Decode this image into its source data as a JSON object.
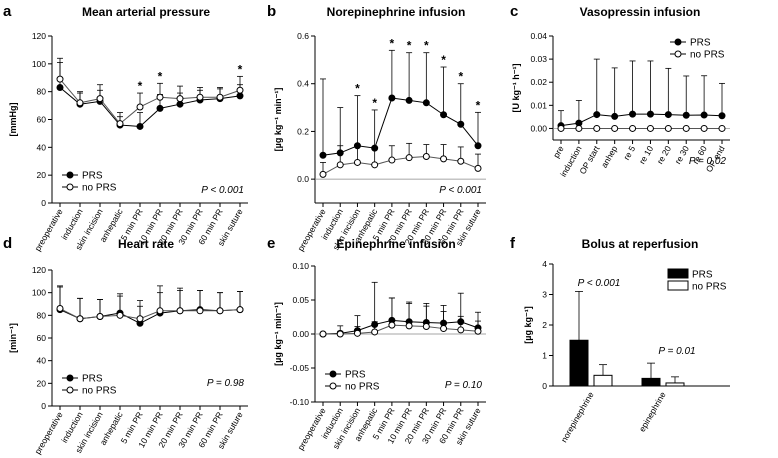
{
  "legend_prs": "PRS",
  "legend_noprs": "no PRS",
  "chart_data": [
    {
      "id": "map",
      "type": "line",
      "panel_label": "a",
      "title": "Mean arterial pressure",
      "ylabel": "[mmHg]",
      "ylim": [
        0,
        120
      ],
      "yticks": [
        "0",
        "20",
        "40",
        "60",
        "80",
        "100",
        "120"
      ],
      "ytick_values": [
        0,
        20,
        40,
        60,
        80,
        100,
        120
      ],
      "categories": [
        "preoperative",
        "induction",
        "skin incision",
        "anhepatic",
        "5 min PR",
        "10 min PR",
        "20 min PR",
        "30 min PR",
        "60 min PR",
        "skin suture"
      ],
      "series": [
        {
          "name": "PRS",
          "values": [
            83,
            71,
            73,
            56,
            55,
            68,
            71,
            74,
            75,
            77
          ],
          "err": [
            18,
            8,
            8,
            9,
            10,
            10,
            8,
            7,
            7,
            8
          ]
        },
        {
          "name": "no PRS",
          "values": [
            89,
            72,
            75,
            57,
            69,
            76,
            75,
            76,
            76,
            81
          ],
          "err": [
            15,
            8,
            10,
            5,
            10,
            10,
            9,
            7,
            7,
            10
          ]
        }
      ],
      "stars": [
        "",
        "",
        "",
        "",
        "*",
        "*",
        "",
        "",
        "",
        "*"
      ],
      "pvalue": "P < 0.001",
      "legend_pos": "bottom-left"
    },
    {
      "id": "norepi",
      "type": "line",
      "panel_label": "b",
      "title": "Norepinephrine infusion",
      "ylabel": "[µg kg⁻¹ min⁻¹]",
      "ylim": [
        -0.1,
        0.6
      ],
      "yticks": [
        "0.0",
        "0.2",
        "0.4",
        "0.6"
      ],
      "ytick_values": [
        0,
        0.2,
        0.4,
        0.6
      ],
      "categories": [
        "preoperative",
        "induction",
        "skin incision",
        "anhepatic",
        "5 min PR",
        "10 min PR",
        "20 min PR",
        "30 min PR",
        "60 min PR",
        "skin suture"
      ],
      "series": [
        {
          "name": "PRS",
          "values": [
            0.1,
            0.11,
            0.14,
            0.13,
            0.34,
            0.33,
            0.32,
            0.27,
            0.23,
            0.14
          ],
          "err": [
            0.32,
            0.19,
            0.21,
            0.16,
            0.2,
            0.2,
            0.21,
            0.2,
            0.17,
            0.14
          ]
        },
        {
          "name": "no PRS",
          "values": [
            0.02,
            0.06,
            0.07,
            0.06,
            0.08,
            0.09,
            0.095,
            0.085,
            0.075,
            0.045
          ],
          "err": [
            0.05,
            0.08,
            0.07,
            0.07,
            0.06,
            0.06,
            0.05,
            0.06,
            0.06,
            0.06
          ]
        }
      ],
      "stars": [
        "",
        "",
        "*",
        "*",
        "*",
        "*",
        "*",
        "*",
        "*",
        "*"
      ],
      "pvalue": "P < 0.001",
      "zero_line": true
    },
    {
      "id": "vaso",
      "type": "line",
      "panel_label": "c",
      "title": "Vasopressin infusion",
      "ylabel": "[U kg⁻¹ h⁻¹]",
      "ylim": [
        -0.005,
        0.04
      ],
      "yticks": [
        "0.00",
        "0.01",
        "0.02",
        "0.03",
        "0.04"
      ],
      "ytick_values": [
        0,
        0.01,
        0.02,
        0.03,
        0.04
      ],
      "categories": [
        "pre",
        "induction",
        "OP start",
        "anhep",
        "re 5",
        "re 10",
        "re 20",
        "re 30",
        "re 60",
        "OP end"
      ],
      "series": [
        {
          "name": "PRS",
          "values": [
            0.0012,
            0.0023,
            0.006,
            0.0052,
            0.0062,
            0.0062,
            0.006,
            0.0057,
            0.0058,
            0.0055
          ],
          "err": [
            0.0065,
            0.0098,
            0.024,
            0.021,
            0.023,
            0.023,
            0.02,
            0.017,
            0.017,
            0.014
          ]
        },
        {
          "name": "no PRS",
          "values": [
            0,
            0,
            0,
            0,
            0,
            0,
            0,
            0,
            0,
            0
          ],
          "err": [
            0,
            0,
            0,
            0,
            0,
            0,
            0,
            0,
            0,
            0
          ]
        }
      ],
      "stars": [
        "",
        "",
        "",
        "",
        "",
        "",
        "",
        "",
        "",
        ""
      ],
      "pvalue": "P = 0.02",
      "zero_line": true,
      "legend_pos": "top-right"
    },
    {
      "id": "hr",
      "type": "line",
      "panel_label": "d",
      "title": "Heart rate",
      "ylabel": "[min⁻¹]",
      "ylim": [
        0,
        120
      ],
      "yticks": [
        "0",
        "20",
        "40",
        "60",
        "80",
        "100",
        "120"
      ],
      "ytick_values": [
        0,
        20,
        40,
        60,
        80,
        100,
        120
      ],
      "categories": [
        "preoperative",
        "induction",
        "skin incision",
        "anhepatic",
        "5 min PR",
        "10 min PR",
        "20 min PR",
        "30 min PR",
        "60 min PR",
        "skin suture"
      ],
      "series": [
        {
          "name": "PRS",
          "values": [
            85,
            77,
            79,
            82,
            73,
            82,
            84,
            85,
            84,
            85
          ],
          "err": [
            20,
            18,
            15,
            17,
            15,
            18,
            18,
            17,
            16,
            16
          ]
        },
        {
          "name": "no PRS",
          "values": [
            86,
            77,
            79,
            80,
            77,
            84,
            84,
            84,
            84,
            85
          ],
          "err": [
            20,
            18,
            15,
            17,
            16,
            22,
            20,
            18,
            16,
            16
          ]
        }
      ],
      "stars": [
        "",
        "",
        "",
        "",
        "",
        "",
        "",
        "",
        "",
        ""
      ],
      "pvalue": "P = 0.98",
      "legend_pos": "bottom-left"
    },
    {
      "id": "epi",
      "type": "line",
      "panel_label": "e",
      "title": "Epinephrine infusion",
      "ylabel": "[µg kg⁻¹ min⁻¹]",
      "ylim": [
        -0.1,
        0.1
      ],
      "yticks": [
        "-0.10",
        "-0.05",
        "0.00",
        "0.05",
        "0.10"
      ],
      "ytick_values": [
        -0.1,
        -0.05,
        0,
        0.05,
        0.1
      ],
      "categories": [
        "preoperative",
        "induction",
        "skin incision",
        "anhepatic",
        "5 min PR",
        "10 min PR",
        "20 min PR",
        "30 min PR",
        "60 min PR",
        "skin suture"
      ],
      "series": [
        {
          "name": "PRS",
          "values": [
            0,
            0.001,
            0.005,
            0.014,
            0.02,
            0.018,
            0.017,
            0.016,
            0.018,
            0.009
          ],
          "err": [
            0.001,
            0.011,
            0.022,
            0.062,
            0.033,
            0.029,
            0.028,
            0.026,
            0.042,
            0.023
          ]
        },
        {
          "name": "no PRS",
          "values": [
            0,
            0,
            0.001,
            0.003,
            0.013,
            0.012,
            0.011,
            0.008,
            0.006,
            0.004
          ],
          "err": [
            0.001,
            0.004,
            0.01,
            0.015,
            0.04,
            0.033,
            0.03,
            0.025,
            0.02,
            0.015
          ]
        }
      ],
      "stars": [
        "",
        "",
        "",
        "",
        "",
        "",
        "",
        "",
        "",
        ""
      ],
      "pvalue": "P = 0.10",
      "zero_line": true,
      "legend_pos": "bottom-left"
    },
    {
      "id": "bolus",
      "type": "bar",
      "panel_label": "f",
      "title": "Bolus at reperfusion",
      "ylabel": "[µg kg⁻¹]",
      "ylim": [
        0,
        4
      ],
      "yticks": [
        "0",
        "1",
        "2",
        "3",
        "4"
      ],
      "ytick_values": [
        0,
        1,
        2,
        3,
        4
      ],
      "categories": [
        "norepinephrine",
        "epinephrine"
      ],
      "series": [
        {
          "name": "PRS",
          "values": [
            1.5,
            0.25
          ],
          "err": [
            1.6,
            0.5
          ]
        },
        {
          "name": "no PRS",
          "values": [
            0.35,
            0.1
          ],
          "err": [
            0.35,
            0.2
          ]
        }
      ],
      "pvalues": [
        "P < 0.001",
        "P = 0.01"
      ],
      "legend_pos": "top-right"
    }
  ]
}
